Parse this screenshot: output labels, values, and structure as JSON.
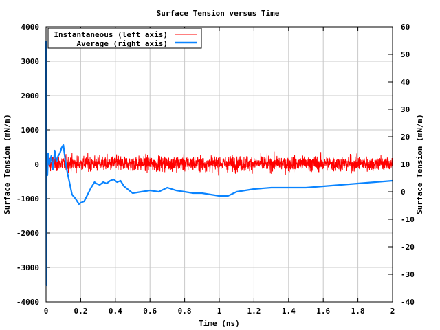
{
  "chart_data": {
    "type": "line",
    "title": "Surface Tension versus Time",
    "xlabel": "Time (ns)",
    "ylabel": "Surface Tension (mN/m)",
    "y2label": "Surface Tension (mN/m)",
    "xlim": [
      0,
      2
    ],
    "ylim": [
      -4000,
      4000
    ],
    "y2lim": [
      -40,
      60
    ],
    "grid": true,
    "legend_position": "top-left",
    "x_ticks": [
      "0",
      "0.2",
      "0.4",
      "0.6",
      "0.8",
      "1",
      "1.2",
      "1.4",
      "1.6",
      "1.8",
      "2"
    ],
    "y_ticks": [
      "4000",
      "3000",
      "2000",
      "1000",
      "0",
      "-1000",
      "-2000",
      "-3000",
      "-4000"
    ],
    "y2_ticks": [
      "60",
      "50",
      "40",
      "30",
      "20",
      "10",
      "0",
      "-10",
      "-20",
      "-30",
      "-40"
    ],
    "series": [
      {
        "name": "Instantaneous (left axis)",
        "axis": "left",
        "color": "#ff0000",
        "noise_summary": {
          "mean": 20,
          "std": 110,
          "max_abs": 380,
          "n_points": 2000
        }
      },
      {
        "name": "Average (right axis)",
        "axis": "right",
        "color": "#0a84ff",
        "x": [
          0,
          0.002,
          0.004,
          0.008,
          0.012,
          0.02,
          0.03,
          0.04,
          0.05,
          0.06,
          0.07,
          0.08,
          0.09,
          0.1,
          0.11,
          0.12,
          0.13,
          0.14,
          0.15,
          0.17,
          0.19,
          0.2,
          0.22,
          0.24,
          0.26,
          0.28,
          0.29,
          0.31,
          0.33,
          0.35,
          0.37,
          0.39,
          0.41,
          0.43,
          0.45,
          0.47,
          0.5,
          0.55,
          0.6,
          0.65,
          0.7,
          0.75,
          0.8,
          0.85,
          0.9,
          0.95,
          1.0,
          1.05,
          1.1,
          1.2,
          1.3,
          1.4,
          1.5,
          1.6,
          1.7,
          1.8,
          1.9,
          2.0
        ],
        "y": [
          55,
          -34,
          12,
          6,
          14,
          10,
          13,
          8,
          15,
          11,
          13,
          14,
          16,
          17,
          12,
          8,
          5,
          2,
          -1,
          -2.5,
          -4.5,
          -4,
          -3.5,
          -1,
          1.5,
          3.5,
          3,
          2.5,
          3.5,
          3,
          4,
          4.5,
          3.5,
          4,
          2,
          1,
          -0.5,
          0,
          0.5,
          0,
          1.5,
          0.5,
          0,
          -0.5,
          -0.5,
          -1,
          -1.5,
          -1.5,
          0,
          1,
          1.5,
          1.5,
          1.5,
          2,
          2.5,
          3,
          3.5,
          4
        ]
      }
    ]
  }
}
